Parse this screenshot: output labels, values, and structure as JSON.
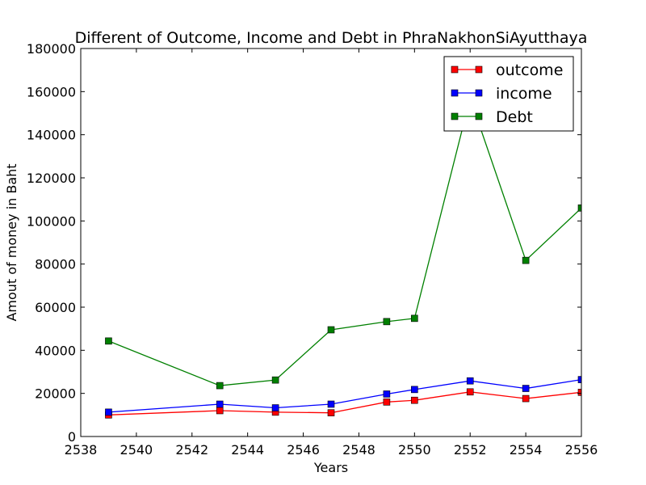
{
  "chart_data": {
    "type": "line",
    "title": "Different of Outcome, Income and Debt in PhraNakhonSiAyutthaya",
    "xlabel": "Years",
    "ylabel": "Amout of money in Baht",
    "xlim": [
      2538,
      2556
    ],
    "ylim": [
      0,
      180000
    ],
    "xticks": [
      "2538",
      "2540",
      "2542",
      "2544",
      "2546",
      "2548",
      "2550",
      "2552",
      "2554",
      "2556"
    ],
    "yticks": [
      "0",
      "20000",
      "40000",
      "60000",
      "80000",
      "100000",
      "120000",
      "140000",
      "160000",
      "180000"
    ],
    "grid": false,
    "legend_position": "top-right",
    "x": [
      2539,
      2543,
      2545,
      2547,
      2549,
      2550,
      2552,
      2554,
      2556
    ],
    "series": [
      {
        "name": "outcome",
        "color": "#ff0000",
        "values": [
          10000,
          12000,
          11300,
          11000,
          16000,
          16800,
          20700,
          17600,
          20500
        ]
      },
      {
        "name": "income",
        "color": "#0000ff",
        "values": [
          11300,
          15000,
          13300,
          15000,
          19700,
          21800,
          25800,
          22300,
          26400
        ]
      },
      {
        "name": "Debt",
        "color": "#008000",
        "values": [
          44300,
          23600,
          26200,
          49500,
          53300,
          54800,
          157000,
          81700,
          106000
        ]
      }
    ]
  }
}
